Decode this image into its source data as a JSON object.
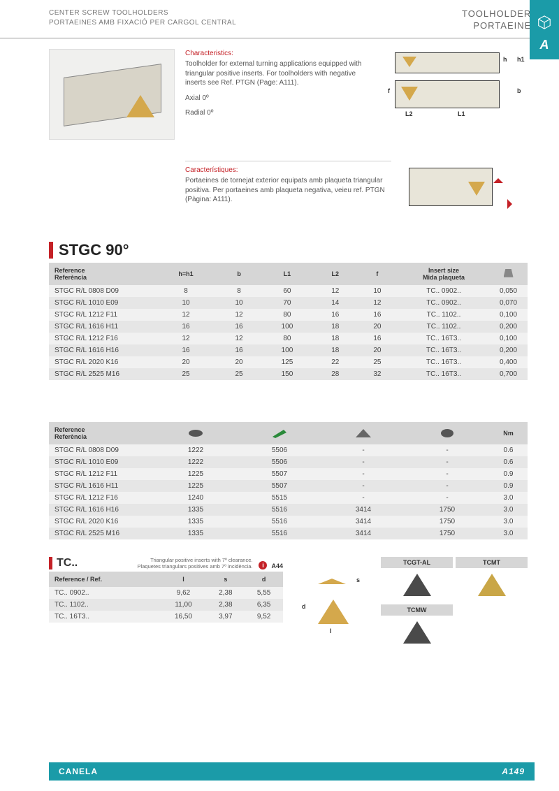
{
  "header": {
    "left_line1": "Center screw toolholders",
    "left_line2": "Portaeines amb fixació per cargol central",
    "right_line1": "TOOLHOLDERS",
    "right_line2": "PORTAEINES"
  },
  "side_tab": {
    "letter": "A"
  },
  "characteristics": {
    "title_en": "Characteristics:",
    "body_en": "Toolholder for external turning applications equipped with triangular positive inserts. For toolholders with negative inserts see Ref. PTGN (Page: A111).",
    "axial": "Axial 0º",
    "radial": "Radial 0º",
    "title_ca": "Característiques:",
    "body_ca": "Portaeines de tornejat exterior equipats amb plaqueta triangular positiva. Per portaeines amb plaqueta negativa, veieu ref. PTGN (Pàgina: A111)."
  },
  "diagram_labels": {
    "h": "h",
    "h1": "h1",
    "b": "b",
    "f": "f",
    "L1": "L1",
    "L2": "L2"
  },
  "product": {
    "title": "STGC 90°"
  },
  "table1": {
    "headers": {
      "ref_en": "Reference",
      "ref_ca": "Referència",
      "h": "h=h1",
      "b": "b",
      "L1": "L1",
      "L2": "L2",
      "f": "f",
      "insert_en": "Insert size",
      "insert_ca": "Mida plaqueta",
      "kg": "Kg"
    },
    "rows": [
      {
        "ref": "STGC R/L 0808 D09",
        "h": "8",
        "b": "8",
        "L1": "60",
        "L2": "12",
        "f": "10",
        "ins": "TC.. 0902..",
        "kg": "0,050"
      },
      {
        "ref": "STGC R/L 1010 E09",
        "h": "10",
        "b": "10",
        "L1": "70",
        "L2": "14",
        "f": "12",
        "ins": "TC.. 0902..",
        "kg": "0,070"
      },
      {
        "ref": "STGC R/L 1212 F11",
        "h": "12",
        "b": "12",
        "L1": "80",
        "L2": "16",
        "f": "16",
        "ins": "TC.. 1102..",
        "kg": "0,100"
      },
      {
        "ref": "STGC R/L 1616 H11",
        "h": "16",
        "b": "16",
        "L1": "100",
        "L2": "18",
        "f": "20",
        "ins": "TC.. 1102..",
        "kg": "0,200"
      },
      {
        "ref": "STGC R/L 1212 F16",
        "h": "12",
        "b": "12",
        "L1": "80",
        "L2": "18",
        "f": "16",
        "ins": "TC.. 16T3..",
        "kg": "0,100"
      },
      {
        "ref": "STGC R/L 1616 H16",
        "h": "16",
        "b": "16",
        "L1": "100",
        "L2": "18",
        "f": "20",
        "ins": "TC.. 16T3..",
        "kg": "0,200"
      },
      {
        "ref": "STGC R/L 2020 K16",
        "h": "20",
        "b": "20",
        "L1": "125",
        "L2": "22",
        "f": "25",
        "ins": "TC.. 16T3..",
        "kg": "0,400"
      },
      {
        "ref": "STGC R/L 2525 M16",
        "h": "25",
        "b": "25",
        "L1": "150",
        "L2": "28",
        "f": "32",
        "ins": "TC.. 16T3..",
        "kg": "0,700"
      }
    ]
  },
  "table2": {
    "headers": {
      "ref_en": "Reference",
      "ref_ca": "Referència",
      "nm": "Nm"
    },
    "rows": [
      {
        "ref": "STGC R/L 0808 D09",
        "c1": "1222",
        "c2": "5506",
        "c3": "-",
        "c4": "-",
        "nm": "0.6"
      },
      {
        "ref": "STGC R/L 1010 E09",
        "c1": "1222",
        "c2": "5506",
        "c3": "-",
        "c4": "-",
        "nm": "0.6"
      },
      {
        "ref": "STGC R/L 1212 F11",
        "c1": "1225",
        "c2": "5507",
        "c3": "-",
        "c4": "-",
        "nm": "0.9"
      },
      {
        "ref": "STGC R/L 1616 H11",
        "c1": "1225",
        "c2": "5507",
        "c3": "-",
        "c4": "-",
        "nm": "0.9"
      },
      {
        "ref": "STGC R/L 1212 F16",
        "c1": "1240",
        "c2": "5515",
        "c3": "-",
        "c4": "-",
        "nm": "3.0"
      },
      {
        "ref": "STGC R/L 1616 H16",
        "c1": "1335",
        "c2": "5516",
        "c3": "3414",
        "c4": "1750",
        "nm": "3.0"
      },
      {
        "ref": "STGC R/L 2020 K16",
        "c1": "1335",
        "c2": "5516",
        "c3": "3414",
        "c4": "1750",
        "nm": "3.0"
      },
      {
        "ref": "STGC R/L 2525 M16",
        "c1": "1335",
        "c2": "5516",
        "c3": "3414",
        "c4": "1750",
        "nm": "3.0"
      }
    ]
  },
  "tc": {
    "title": "TC..",
    "note_en": "Triangular positive inserts with 7º clearance.",
    "note_ca": "Plaquetes triangulars positives amb 7º incidència.",
    "ref_page": "A44",
    "headers": {
      "ref": "Reference / Ref.",
      "l": "l",
      "s": "s",
      "d": "d"
    },
    "rows": [
      {
        "ref": "TC.. 0902..",
        "l": "9,62",
        "s": "2,38",
        "d": "5,55"
      },
      {
        "ref": "TC.. 1102..",
        "l": "11,00",
        "s": "2,38",
        "d": "6,35"
      },
      {
        "ref": "TC.. 16T3..",
        "l": "16,50",
        "s": "3,97",
        "d": "9,52"
      }
    ],
    "mid_labels": {
      "s": "s",
      "d": "d",
      "l": "l"
    },
    "inserts": {
      "a": "TCGT-AL",
      "b": "TCMT",
      "c": "TCMW"
    }
  },
  "footer": {
    "brand": "CANELA",
    "page": "A149"
  },
  "colors": {
    "accent_red": "#c42127",
    "accent_teal": "#1b9ba8",
    "insert_gold": "#d4a84c",
    "tool_beige": "#d8d4c8",
    "header_gray": "#d6d6d6",
    "row_light": "#f1f1f1",
    "row_dark": "#e6e6e6"
  }
}
